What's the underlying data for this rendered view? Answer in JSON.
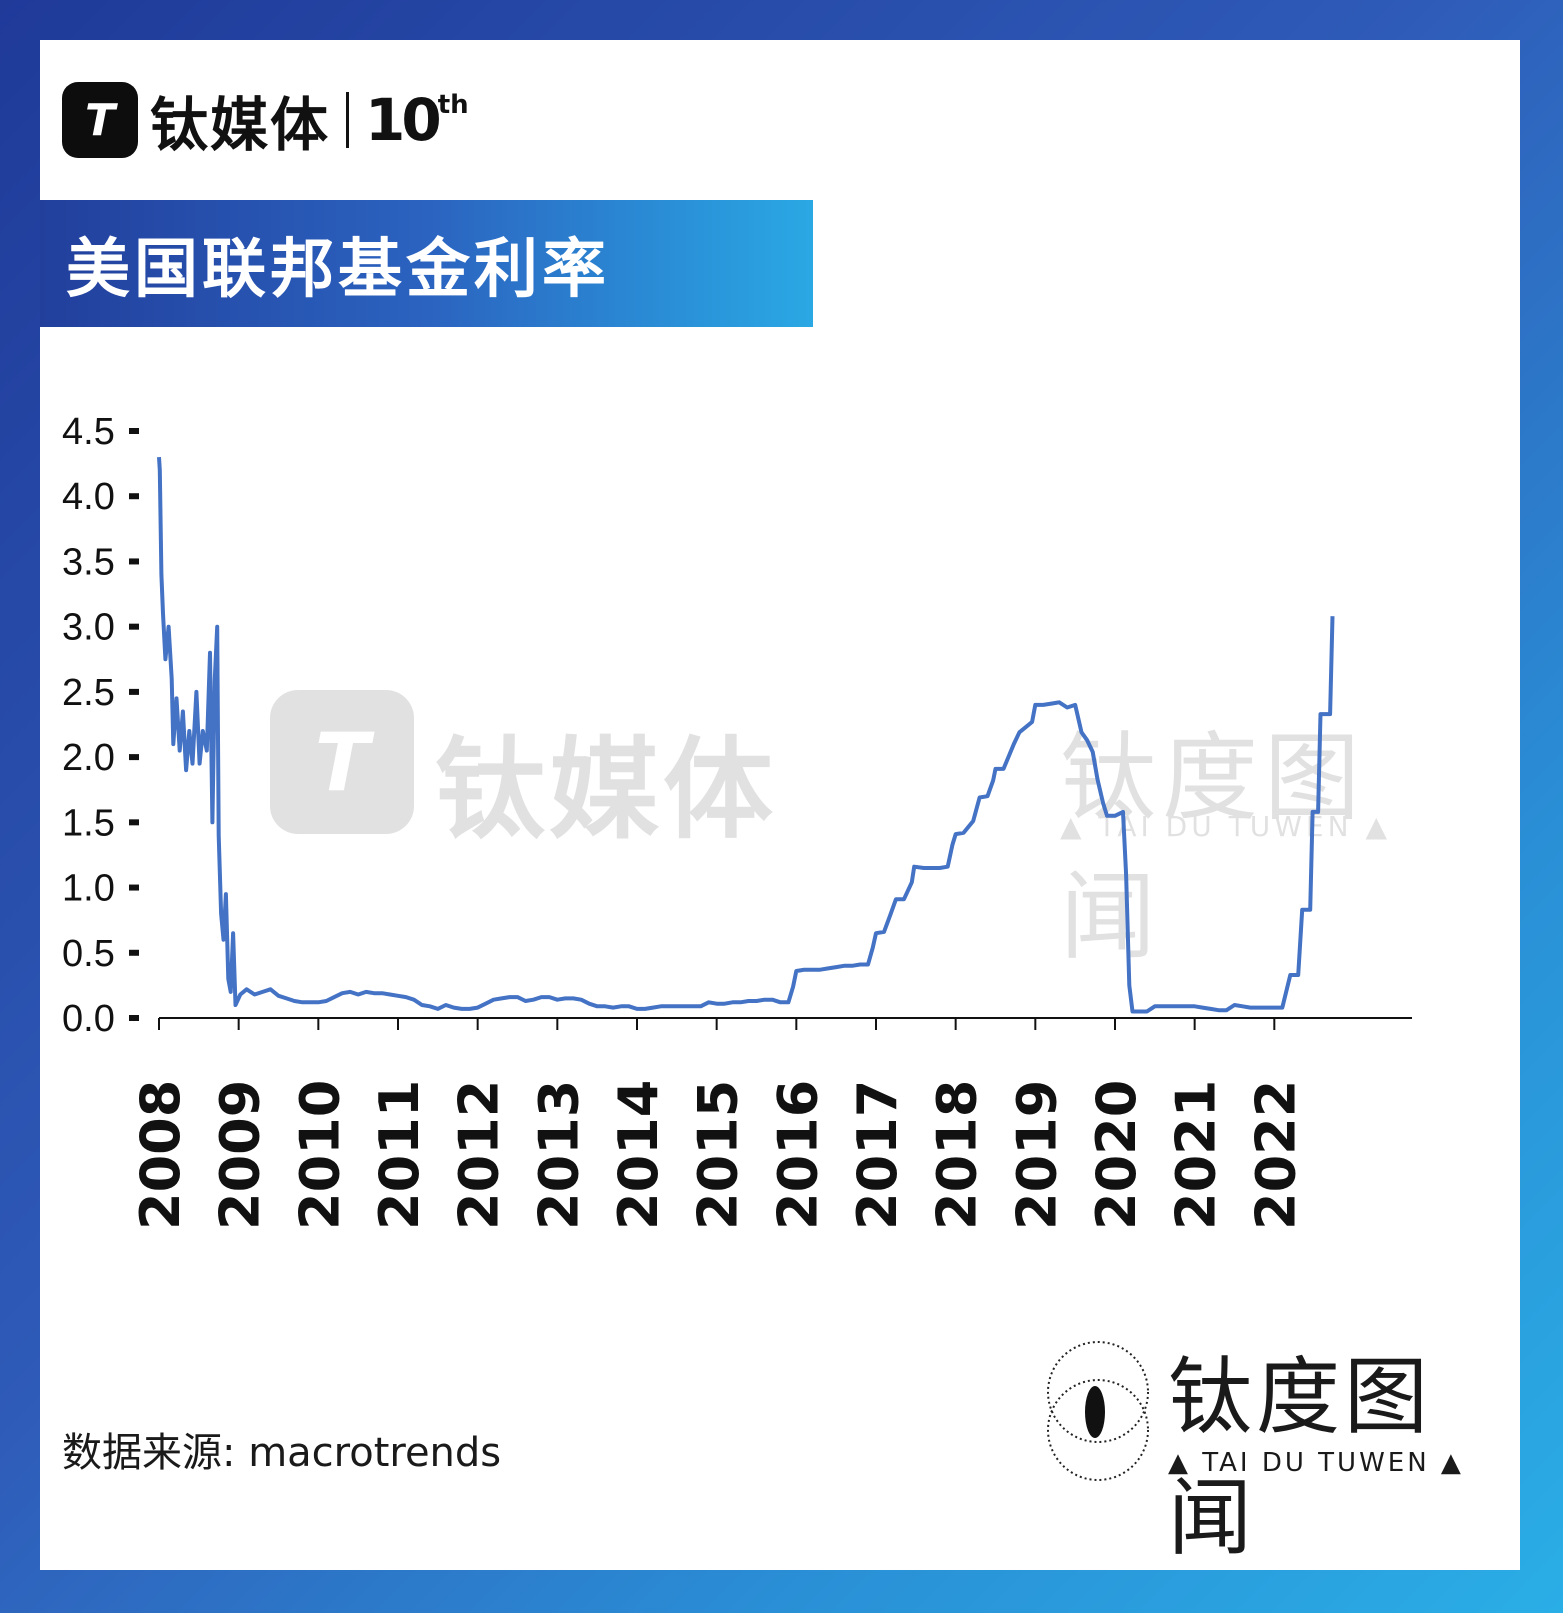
{
  "brand": {
    "logo_glyph": "T",
    "name": "钛媒体",
    "anniversary_number": "10",
    "anniversary_suffix": "th"
  },
  "title": "美国联邦基金利率",
  "watermark": {
    "name": "钛媒体",
    "right_name": "钛度图闻",
    "right_sub": "▲ TAI DU TUWEN ▲"
  },
  "source": "数据来源: macrotrends",
  "footer": {
    "name": "钛度图闻",
    "sub": "▲ TAI DU TUWEN ▲"
  },
  "colors": {
    "line": "#4472c4",
    "axis": "#111111",
    "banner_start": "#223f9c",
    "banner_end": "#2aa8e4"
  },
  "chart_data": {
    "type": "line",
    "title": "美国联邦基金利率",
    "xlabel": "",
    "ylabel": "",
    "ylim": [
      0,
      4.5
    ],
    "xlim": [
      2008.0,
      2022.95
    ],
    "y_ticks": [
      "0.0",
      "0.5",
      "1.0",
      "1.5",
      "2.0",
      "2.5",
      "3.0",
      "3.5",
      "4.0",
      "4.5"
    ],
    "x_ticks": [
      "2008",
      "2009",
      "2010",
      "2011",
      "2012",
      "2013",
      "2014",
      "2015",
      "2016",
      "2017",
      "2018",
      "2019",
      "2020",
      "2021",
      "2022"
    ],
    "grid": false,
    "legend": "none",
    "series": [
      {
        "points": [
          [
            2008.0,
            4.3
          ],
          [
            2008.01,
            4.2
          ],
          [
            2008.03,
            3.4
          ],
          [
            2008.05,
            3.1
          ],
          [
            2008.08,
            2.75
          ],
          [
            2008.12,
            3.0
          ],
          [
            2008.16,
            2.6
          ],
          [
            2008.18,
            2.1
          ],
          [
            2008.22,
            2.45
          ],
          [
            2008.26,
            2.05
          ],
          [
            2008.3,
            2.35
          ],
          [
            2008.34,
            1.9
          ],
          [
            2008.38,
            2.2
          ],
          [
            2008.42,
            1.95
          ],
          [
            2008.47,
            2.5
          ],
          [
            2008.51,
            1.95
          ],
          [
            2008.55,
            2.2
          ],
          [
            2008.6,
            2.05
          ],
          [
            2008.64,
            2.8
          ],
          [
            2008.67,
            1.5
          ],
          [
            2008.7,
            2.6
          ],
          [
            2008.73,
            3.0
          ],
          [
            2008.75,
            1.4
          ],
          [
            2008.78,
            0.8
          ],
          [
            2008.81,
            0.6
          ],
          [
            2008.84,
            0.95
          ],
          [
            2008.87,
            0.3
          ],
          [
            2008.9,
            0.2
          ],
          [
            2008.93,
            0.65
          ],
          [
            2008.96,
            0.1
          ],
          [
            2009.02,
            0.18
          ],
          [
            2009.1,
            0.22
          ],
          [
            2009.2,
            0.18
          ],
          [
            2009.3,
            0.2
          ],
          [
            2009.4,
            0.22
          ],
          [
            2009.5,
            0.17
          ],
          [
            2009.6,
            0.15
          ],
          [
            2009.7,
            0.13
          ],
          [
            2009.8,
            0.12
          ],
          [
            2009.9,
            0.12
          ],
          [
            2010.0,
            0.12
          ],
          [
            2010.1,
            0.13
          ],
          [
            2010.2,
            0.16
          ],
          [
            2010.3,
            0.19
          ],
          [
            2010.4,
            0.2
          ],
          [
            2010.5,
            0.18
          ],
          [
            2010.6,
            0.2
          ],
          [
            2010.7,
            0.19
          ],
          [
            2010.8,
            0.19
          ],
          [
            2010.9,
            0.18
          ],
          [
            2011.0,
            0.17
          ],
          [
            2011.1,
            0.16
          ],
          [
            2011.2,
            0.14
          ],
          [
            2011.3,
            0.1
          ],
          [
            2011.4,
            0.09
          ],
          [
            2011.5,
            0.07
          ],
          [
            2011.6,
            0.1
          ],
          [
            2011.7,
            0.08
          ],
          [
            2011.8,
            0.07
          ],
          [
            2011.9,
            0.07
          ],
          [
            2012.0,
            0.08
          ],
          [
            2012.1,
            0.11
          ],
          [
            2012.2,
            0.14
          ],
          [
            2012.3,
            0.15
          ],
          [
            2012.4,
            0.16
          ],
          [
            2012.5,
            0.16
          ],
          [
            2012.6,
            0.13
          ],
          [
            2012.7,
            0.14
          ],
          [
            2012.8,
            0.16
          ],
          [
            2012.9,
            0.16
          ],
          [
            2013.0,
            0.14
          ],
          [
            2013.1,
            0.15
          ],
          [
            2013.2,
            0.15
          ],
          [
            2013.3,
            0.14
          ],
          [
            2013.4,
            0.11
          ],
          [
            2013.5,
            0.09
          ],
          [
            2013.6,
            0.09
          ],
          [
            2013.7,
            0.08
          ],
          [
            2013.8,
            0.09
          ],
          [
            2013.9,
            0.09
          ],
          [
            2014.0,
            0.07
          ],
          [
            2014.1,
            0.07
          ],
          [
            2014.2,
            0.08
          ],
          [
            2014.3,
            0.09
          ],
          [
            2014.4,
            0.09
          ],
          [
            2014.5,
            0.09
          ],
          [
            2014.6,
            0.09
          ],
          [
            2014.7,
            0.09
          ],
          [
            2014.8,
            0.09
          ],
          [
            2014.9,
            0.12
          ],
          [
            2015.0,
            0.11
          ],
          [
            2015.1,
            0.11
          ],
          [
            2015.2,
            0.12
          ],
          [
            2015.3,
            0.12
          ],
          [
            2015.4,
            0.13
          ],
          [
            2015.5,
            0.13
          ],
          [
            2015.6,
            0.14
          ],
          [
            2015.7,
            0.14
          ],
          [
            2015.8,
            0.12
          ],
          [
            2015.9,
            0.12
          ],
          [
            2015.96,
            0.24
          ],
          [
            2016.0,
            0.36
          ],
          [
            2016.1,
            0.37
          ],
          [
            2016.2,
            0.37
          ],
          [
            2016.3,
            0.37
          ],
          [
            2016.4,
            0.38
          ],
          [
            2016.5,
            0.39
          ],
          [
            2016.6,
            0.4
          ],
          [
            2016.7,
            0.4
          ],
          [
            2016.8,
            0.41
          ],
          [
            2016.9,
            0.41
          ],
          [
            2016.96,
            0.54
          ],
          [
            2017.0,
            0.65
          ],
          [
            2017.1,
            0.66
          ],
          [
            2017.18,
            0.79
          ],
          [
            2017.25,
            0.91
          ],
          [
            2017.35,
            0.91
          ],
          [
            2017.45,
            1.04
          ],
          [
            2017.48,
            1.16
          ],
          [
            2017.6,
            1.15
          ],
          [
            2017.7,
            1.15
          ],
          [
            2017.8,
            1.15
          ],
          [
            2017.9,
            1.16
          ],
          [
            2017.96,
            1.33
          ],
          [
            2018.0,
            1.41
          ],
          [
            2018.1,
            1.42
          ],
          [
            2018.22,
            1.51
          ],
          [
            2018.3,
            1.69
          ],
          [
            2018.4,
            1.7
          ],
          [
            2018.47,
            1.82
          ],
          [
            2018.5,
            1.91
          ],
          [
            2018.6,
            1.91
          ],
          [
            2018.73,
            2.1
          ],
          [
            2018.8,
            2.19
          ],
          [
            2018.96,
            2.27
          ],
          [
            2019.0,
            2.4
          ],
          [
            2019.1,
            2.4
          ],
          [
            2019.2,
            2.41
          ],
          [
            2019.3,
            2.42
          ],
          [
            2019.4,
            2.38
          ],
          [
            2019.5,
            2.4
          ],
          [
            2019.58,
            2.19
          ],
          [
            2019.65,
            2.13
          ],
          [
            2019.72,
            2.04
          ],
          [
            2019.78,
            1.83
          ],
          [
            2019.85,
            1.65
          ],
          [
            2019.9,
            1.55
          ],
          [
            2020.0,
            1.55
          ],
          [
            2020.1,
            1.58
          ],
          [
            2020.14,
            1.1
          ],
          [
            2020.18,
            0.25
          ],
          [
            2020.22,
            0.05
          ],
          [
            2020.3,
            0.05
          ],
          [
            2020.4,
            0.05
          ],
          [
            2020.5,
            0.09
          ],
          [
            2020.6,
            0.09
          ],
          [
            2020.7,
            0.09
          ],
          [
            2020.8,
            0.09
          ],
          [
            2020.9,
            0.09
          ],
          [
            2021.0,
            0.09
          ],
          [
            2021.1,
            0.08
          ],
          [
            2021.2,
            0.07
          ],
          [
            2021.3,
            0.06
          ],
          [
            2021.4,
            0.06
          ],
          [
            2021.5,
            0.1
          ],
          [
            2021.6,
            0.09
          ],
          [
            2021.7,
            0.08
          ],
          [
            2021.8,
            0.08
          ],
          [
            2021.9,
            0.08
          ],
          [
            2022.0,
            0.08
          ],
          [
            2022.1,
            0.08
          ],
          [
            2022.2,
            0.33
          ],
          [
            2022.3,
            0.33
          ],
          [
            2022.35,
            0.83
          ],
          [
            2022.45,
            0.83
          ],
          [
            2022.48,
            1.58
          ],
          [
            2022.55,
            1.58
          ],
          [
            2022.58,
            2.33
          ],
          [
            2022.7,
            2.33
          ],
          [
            2022.73,
            3.08
          ]
        ]
      }
    ]
  }
}
